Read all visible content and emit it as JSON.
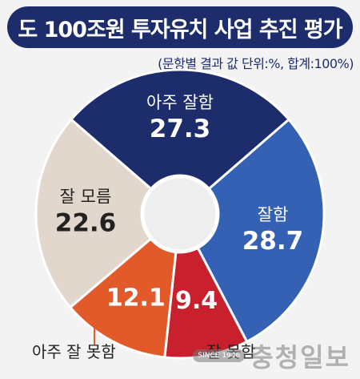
{
  "header": {
    "title": "도 100조원 투자유치 사업 추진 평가",
    "subtitle": "(문항별 결과 값 단위:%, 합계:100%)"
  },
  "watermark": {
    "text": "충청일보",
    "badge": "SINCE 1946"
  },
  "colors": {
    "title_bg": "#1d2d6b",
    "very_good": "#1d2d6b",
    "good": "#3461b4",
    "bad": "#c8202c",
    "very_bad": "#e25a2a",
    "unknown": "#e2d7cc"
  },
  "chart_data": {
    "type": "pie",
    "title": "도 100조원 투자유치 사업 추진 평가",
    "unit": "%",
    "donut": true,
    "slices": [
      {
        "label": "아주 잘함",
        "value": 27.3,
        "value_label": "27.3",
        "color": "#1d2d6b",
        "text_color": "#ffffff"
      },
      {
        "label": "잘함",
        "value": 28.7,
        "value_label": "28.7",
        "color": "#3461b4",
        "text_color": "#ffffff"
      },
      {
        "label": "잘 못함",
        "value": 9.4,
        "value_label": "9.4",
        "color": "#c8202c",
        "text_color": "#ffffff"
      },
      {
        "label": "아주 잘 못함",
        "value": 12.1,
        "value_label": "12.1",
        "color": "#e25a2a",
        "text_color": "#ffffff"
      },
      {
        "label": "잘 모름",
        "value": 22.6,
        "value_label": "22.6",
        "color": "#e2d7cc",
        "text_color": "#222222"
      }
    ]
  }
}
